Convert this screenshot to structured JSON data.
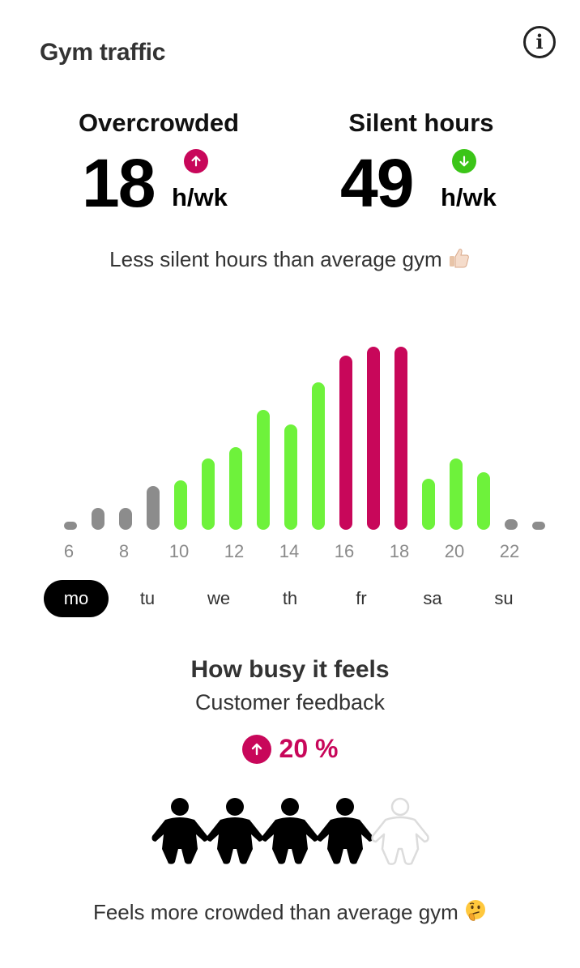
{
  "header": {
    "title": "Gym traffic",
    "info_icon": "info-icon"
  },
  "stats": {
    "overcrowded": {
      "label": "Overcrowded",
      "value": "18",
      "unit": "h/wk",
      "trend": "up",
      "trend_color": "#c8075a"
    },
    "silent": {
      "label": "Silent hours",
      "value": "49",
      "unit": "h/wk",
      "trend": "down",
      "trend_color": "#3bc518"
    }
  },
  "comparison_caption": "Less silent hours than average gym",
  "comparison_emoji": "thumbs-up-icon",
  "colors": {
    "quiet": "#8c8c8c",
    "normal": "#6ef23b",
    "busy": "#c8075a"
  },
  "chart_data": {
    "type": "bar",
    "x": [
      6,
      7,
      8,
      9,
      10,
      11,
      12,
      13,
      14,
      15,
      16,
      17,
      18,
      19,
      20,
      21,
      22,
      23
    ],
    "tick_labels": [
      "6",
      "8",
      "10",
      "12",
      "14",
      "16",
      "18",
      "20",
      "22"
    ],
    "tick_values": [
      6,
      8,
      10,
      12,
      14,
      16,
      18,
      20,
      22
    ],
    "values": [
      3,
      13,
      13,
      26,
      29,
      42,
      49,
      71,
      62,
      87,
      103,
      108,
      108,
      30,
      42,
      34,
      6,
      4
    ],
    "levels": [
      "quiet",
      "quiet",
      "quiet",
      "quiet",
      "normal",
      "normal",
      "normal",
      "normal",
      "normal",
      "normal",
      "busy",
      "busy",
      "busy",
      "normal",
      "normal",
      "normal",
      "quiet",
      "quiet"
    ],
    "ylim": [
      0,
      110
    ]
  },
  "days": {
    "selected": "mo",
    "items": [
      {
        "key": "mo",
        "label": "mo"
      },
      {
        "key": "tu",
        "label": "tu"
      },
      {
        "key": "we",
        "label": "we"
      },
      {
        "key": "th",
        "label": "th"
      },
      {
        "key": "fr",
        "label": "fr"
      },
      {
        "key": "sa",
        "label": "sa"
      },
      {
        "key": "su",
        "label": "su"
      }
    ]
  },
  "feedback": {
    "title": "How busy it feels",
    "subtitle": "Customer feedback",
    "change": "20 %",
    "trend": "up",
    "rating": 4,
    "rating_max": 5,
    "caption": "Feels more crowded than average gym",
    "caption_emoji": "thinking-face-icon"
  }
}
